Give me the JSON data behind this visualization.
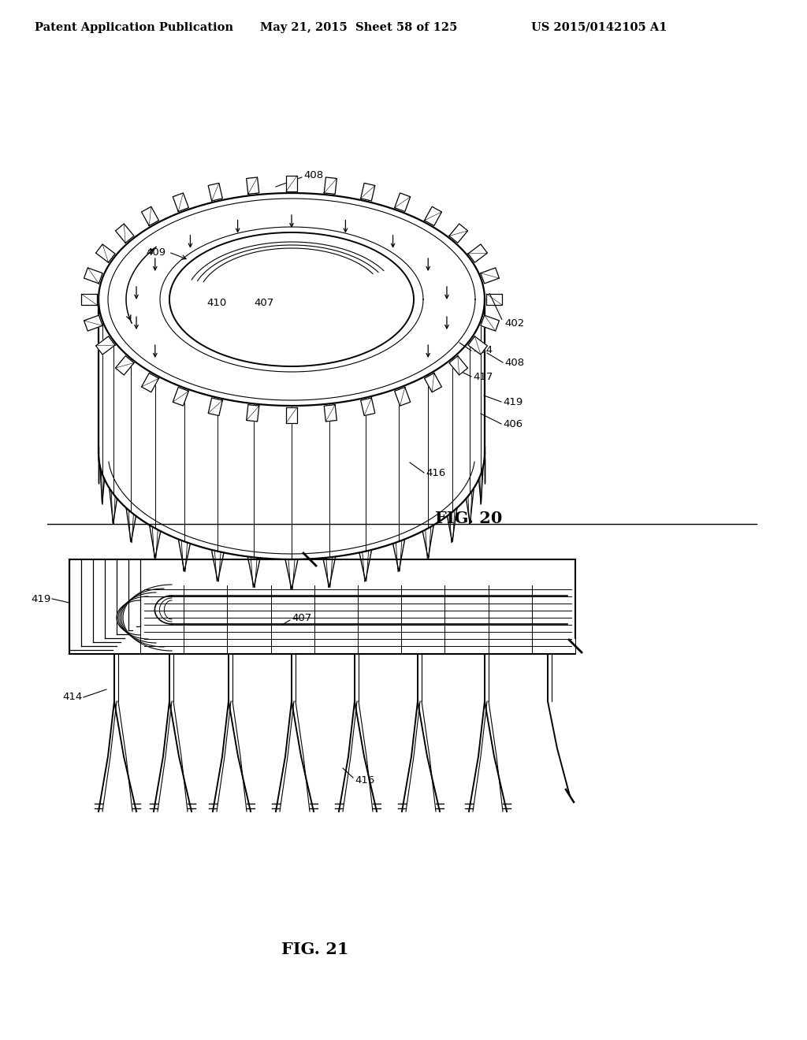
{
  "background_color": "#ffffff",
  "header_left": "Patent Application Publication",
  "header_mid": "May 21, 2015  Sheet 58 of 125",
  "header_right": "US 2015/0142105 A1",
  "line_color": "#000000",
  "fig20_label": "FIG. 20",
  "fig21_label": "FIG. 21",
  "header_fontsize": 10.5,
  "label_fontsize": 15,
  "annot_fontsize": 9.5
}
